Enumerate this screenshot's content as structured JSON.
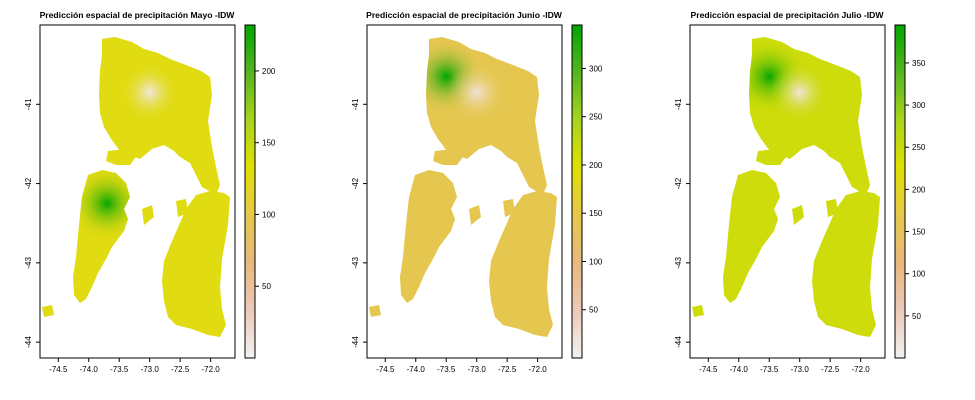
{
  "chart_data": [
    {
      "type": "heatmap",
      "title": "Predicción espacial de precipitación Mayo -IDW",
      "x_ticks": [
        "-74.5",
        "-74.0",
        "-73.5",
        "-73.0",
        "-72.5",
        "-72.0"
      ],
      "x_tick_values": [
        -74.5,
        -74.0,
        -73.5,
        -73.0,
        -72.5,
        -72.0
      ],
      "y_ticks": [
        "-41",
        "-42",
        "-43",
        "-44"
      ],
      "y_tick_values": [
        -41,
        -42,
        -43,
        -44
      ],
      "xlim": [
        -74.8,
        -71.6
      ],
      "ylim": [
        -44.2,
        -40.0
      ],
      "legend_ticks": [
        "50",
        "100",
        "150",
        "200"
      ],
      "legend_tick_values": [
        50,
        100,
        150,
        200
      ],
      "legend_range": [
        0,
        232
      ],
      "wettest_point": {
        "lon": -73.7,
        "lat": -42.25,
        "value": 230
      },
      "driest_point": {
        "lon": -73.0,
        "lat": -40.85,
        "value": 10
      },
      "base_value": 125
    },
    {
      "type": "heatmap",
      "title": "Predicción espacial de precipitación Junio -IDW",
      "x_ticks": [
        "-74.5",
        "-74.0",
        "-73.5",
        "-73.0",
        "-72.5",
        "-72.0"
      ],
      "x_tick_values": [
        -74.5,
        -74.0,
        -73.5,
        -73.0,
        -72.5,
        -72.0
      ],
      "y_ticks": [
        "-41",
        "-42",
        "-43",
        "-44"
      ],
      "y_tick_values": [
        -41,
        -42,
        -43,
        -44
      ],
      "xlim": [
        -74.8,
        -71.6
      ],
      "ylim": [
        -44.2,
        -40.0
      ],
      "legend_ticks": [
        "50",
        "100",
        "150",
        "200",
        "250",
        "300"
      ],
      "legend_tick_values": [
        50,
        100,
        150,
        200,
        250,
        300
      ],
      "legend_range": [
        0,
        345
      ],
      "wettest_point": {
        "lon": -73.5,
        "lat": -40.65,
        "value": 345
      },
      "driest_point": {
        "lon": -73.0,
        "lat": -40.85,
        "value": 20
      },
      "base_value": 145
    },
    {
      "type": "heatmap",
      "title": "Predicción espacial de precipitación Julio -IDW",
      "x_ticks": [
        "-74.5",
        "-74.0",
        "-73.5",
        "-73.0",
        "-72.5",
        "-72.0"
      ],
      "x_tick_values": [
        -74.5,
        -74.0,
        -73.5,
        -73.0,
        -72.5,
        -72.0
      ],
      "y_ticks": [
        "-41",
        "-42",
        "-43",
        "-44"
      ],
      "y_tick_values": [
        -41,
        -42,
        -43,
        -44
      ],
      "xlim": [
        -74.8,
        -71.6
      ],
      "ylim": [
        -44.2,
        -40.0
      ],
      "legend_ticks": [
        "50",
        "100",
        "150",
        "200",
        "250",
        "300",
        "350"
      ],
      "legend_tick_values": [
        50,
        100,
        150,
        200,
        250,
        300,
        350
      ],
      "legend_range": [
        0,
        395
      ],
      "wettest_point": {
        "lon": -73.5,
        "lat": -40.65,
        "value": 390
      },
      "driest_point": {
        "lon": -73.0,
        "lat": -40.85,
        "value": 20
      },
      "base_value": 245
    }
  ],
  "colors": {
    "ramp": [
      "#f2f2f2",
      "#ecc9b8",
      "#e8b87f",
      "#e5c84c",
      "#e0e000",
      "#a8d41e",
      "#56b51f",
      "#00a600"
    ],
    "land_low": "#e4b770",
    "sea": "#ffffff",
    "frame": "#000000"
  }
}
